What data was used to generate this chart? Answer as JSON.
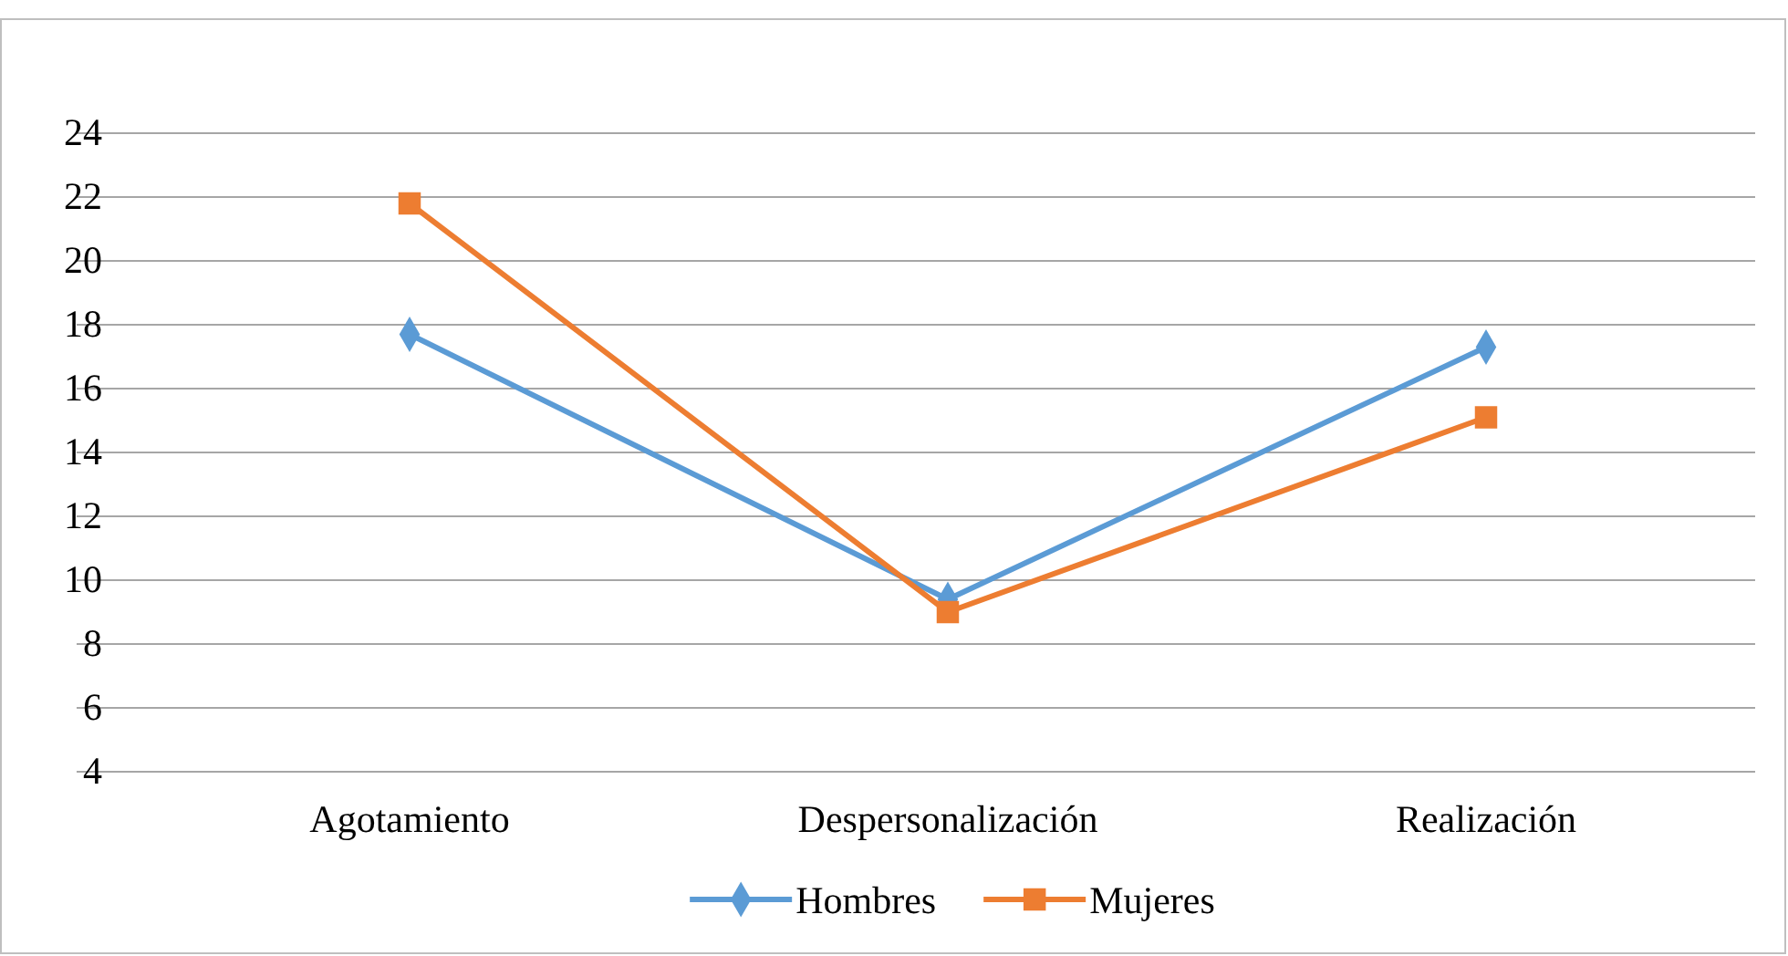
{
  "chart_data": {
    "type": "line",
    "categories": [
      "Agotamiento",
      "Despersonalización",
      "Realización"
    ],
    "series": [
      {
        "name": "Hombres",
        "color": "#5b9bd5",
        "marker": "diamond",
        "values": [
          17.7,
          9.4,
          17.3
        ]
      },
      {
        "name": "Mujeres",
        "color": "#ed7d31",
        "marker": "square",
        "values": [
          21.8,
          9.0,
          15.1
        ]
      }
    ],
    "ylim": [
      4,
      24
    ],
    "yticks": [
      4,
      6,
      8,
      10,
      12,
      14,
      16,
      18,
      20,
      22,
      24
    ],
    "grid": "y",
    "legend": "bottom"
  }
}
